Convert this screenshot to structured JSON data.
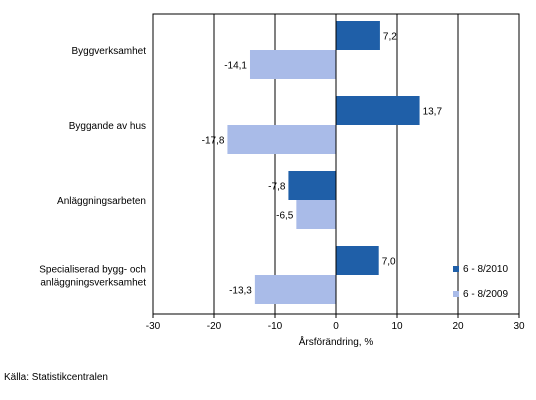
{
  "chart_data": {
    "type": "bar",
    "orientation": "horizontal",
    "categories": [
      [
        "Byggverksamhet"
      ],
      [
        "Byggande av hus"
      ],
      [
        "Anläggningsarbeten"
      ],
      [
        "Specialiserad bygg- och",
        "anläggningsverksamhet"
      ]
    ],
    "series": [
      {
        "name": "6 - 8/2010",
        "color": "#1f5fa8",
        "values": [
          7.2,
          13.7,
          -7.8,
          7.0
        ],
        "labels": [
          "7,2",
          "13,7",
          "-7,8",
          "7,0"
        ]
      },
      {
        "name": "6 - 8/2009",
        "color": "#a9bbe8",
        "values": [
          -14.1,
          -17.8,
          -6.5,
          -13.3
        ],
        "labels": [
          "-14,1",
          "-17,8",
          "-6,5",
          "-13,3"
        ]
      }
    ],
    "xlabel": "Årsförändring, %",
    "xlim": [
      -30,
      30
    ],
    "xticks": [
      -30,
      -20,
      -10,
      0,
      10,
      20,
      30
    ],
    "xtick_labels": [
      "-30",
      "-20",
      "-10",
      "0",
      "10",
      "20",
      "30"
    ],
    "grid": true,
    "legend_position": "bottom-right"
  },
  "source": "Källa: Statistikcentralen"
}
